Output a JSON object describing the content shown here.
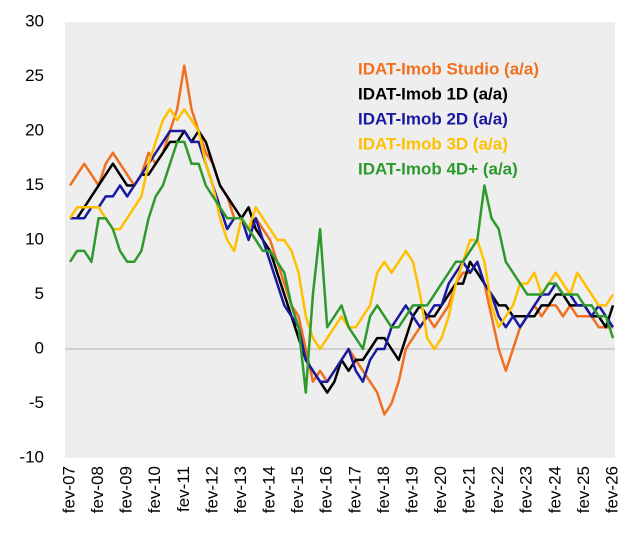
{
  "chart_data": {
    "type": "line",
    "categories": [
      "fev-07",
      null,
      null,
      null,
      "fev-08",
      null,
      null,
      null,
      "fev-09",
      null,
      null,
      null,
      "fev-10",
      null,
      null,
      null,
      "fev-11",
      null,
      null,
      null,
      "fev-12",
      null,
      null,
      null,
      "fev-13",
      null,
      null,
      null,
      "fev-14",
      null,
      null,
      null,
      "fev-15",
      null,
      null,
      null,
      "fev-16",
      null,
      null,
      null,
      "fev-17",
      null,
      null,
      null,
      "fev-18",
      null,
      null,
      null,
      "fev-19",
      null,
      null,
      null,
      "fev-20",
      null,
      null,
      null,
      "fev-21",
      null,
      null,
      null,
      "fev-22",
      null,
      null,
      null,
      "fev-23",
      null,
      null,
      null,
      "fev-24",
      null,
      null,
      null,
      "fev-25",
      null,
      null,
      null,
      "fev-26"
    ],
    "series": [
      {
        "name": "IDAT-Imob Studio (a/a)",
        "color": "#f07020",
        "values": [
          15,
          16,
          17,
          16,
          15,
          17,
          18,
          17,
          16,
          15,
          16,
          18,
          17,
          18,
          20,
          22,
          26,
          22,
          20,
          18,
          17,
          15,
          14,
          12,
          12,
          11,
          12,
          11,
          10,
          8,
          6,
          4,
          3,
          0,
          -3,
          -2,
          -3,
          -2,
          -1,
          0,
          -1,
          -2,
          -3,
          -4,
          -6,
          -5,
          -3,
          0,
          1,
          2,
          3,
          2,
          3,
          4,
          6,
          7,
          7,
          8,
          6,
          3,
          0,
          -2,
          0,
          2,
          3,
          4,
          3,
          4,
          4,
          3,
          4,
          3,
          3,
          3,
          2,
          2,
          2
        ]
      },
      {
        "name": "IDAT-Imob 1D (a/a)",
        "color": "#000000",
        "values": [
          12,
          12,
          13,
          14,
          15,
          16,
          17,
          16,
          15,
          15,
          16,
          16,
          17,
          18,
          19,
          19,
          20,
          19,
          20,
          19,
          17,
          15,
          14,
          13,
          12,
          13,
          11,
          10,
          9,
          7,
          5,
          3,
          1,
          -1,
          -2,
          -3,
          -4,
          -3,
          -1,
          -2,
          -1,
          -1,
          0,
          1,
          1,
          0,
          -1,
          1,
          3,
          4,
          3,
          3,
          4,
          5,
          6,
          6,
          8,
          7,
          6,
          5,
          4,
          4,
          3,
          3,
          3,
          3,
          4,
          4,
          5,
          5,
          4,
          4,
          4,
          3,
          3,
          2,
          4
        ]
      },
      {
        "name": "IDAT-Imob 2D (a/a)",
        "color": "#1a1aa0",
        "values": [
          12,
          12,
          12,
          13,
          13,
          14,
          14,
          15,
          14,
          15,
          16,
          17,
          18,
          19,
          20,
          20,
          20,
          19,
          19,
          17,
          15,
          13,
          11,
          12,
          12,
          10,
          12,
          10,
          8,
          6,
          4,
          3,
          2,
          -1,
          -2,
          -3,
          -3,
          -2,
          -1,
          0,
          -2,
          -3,
          -1,
          0,
          0,
          2,
          3,
          4,
          3,
          2,
          3,
          4,
          4,
          6,
          7,
          8,
          7,
          8,
          6,
          5,
          3,
          2,
          3,
          2,
          3,
          4,
          5,
          5,
          6,
          5,
          5,
          4,
          4,
          3,
          4,
          3,
          2
        ]
      },
      {
        "name": "IDAT-Imob 3D (a/a)",
        "color": "#ffc000",
        "values": [
          12,
          13,
          13,
          13,
          13,
          12,
          11,
          11,
          12,
          13,
          14,
          17,
          19,
          21,
          22,
          21,
          22,
          21,
          20,
          17,
          15,
          12,
          10,
          9,
          12,
          11,
          13,
          12,
          11,
          10,
          10,
          9,
          7,
          3,
          1,
          0,
          1,
          2,
          3,
          2,
          2,
          3,
          4,
          7,
          8,
          7,
          8,
          9,
          8,
          5,
          1,
          0,
          1,
          3,
          6,
          8,
          10,
          10,
          8,
          4,
          2,
          3,
          4,
          6,
          6,
          7,
          5,
          6,
          7,
          6,
          5,
          7,
          6,
          5,
          4,
          4,
          5
        ]
      },
      {
        "name": "IDAT-Imob 4D+ (a/a)",
        "color": "#2e9a2e",
        "values": [
          8,
          9,
          9,
          8,
          12,
          12,
          11,
          9,
          8,
          8,
          9,
          12,
          14,
          15,
          17,
          19,
          19,
          17,
          17,
          15,
          14,
          13,
          12,
          12,
          12,
          11,
          10,
          9,
          9,
          8,
          7,
          4,
          2,
          -4,
          5,
          11,
          2,
          3,
          4,
          2,
          1,
          0,
          3,
          4,
          3,
          2,
          2,
          3,
          4,
          4,
          4,
          5,
          6,
          7,
          8,
          8,
          9,
          10,
          15,
          12,
          11,
          8,
          7,
          6,
          5,
          5,
          5,
          6,
          6,
          5,
          5,
          5,
          4,
          4,
          3,
          3,
          1
        ]
      }
    ],
    "ylim": [
      -10,
      30
    ],
    "yticks": [
      -10,
      -5,
      0,
      5,
      10,
      15,
      20,
      25,
      30
    ],
    "grid": false,
    "legend": "upper right"
  }
}
